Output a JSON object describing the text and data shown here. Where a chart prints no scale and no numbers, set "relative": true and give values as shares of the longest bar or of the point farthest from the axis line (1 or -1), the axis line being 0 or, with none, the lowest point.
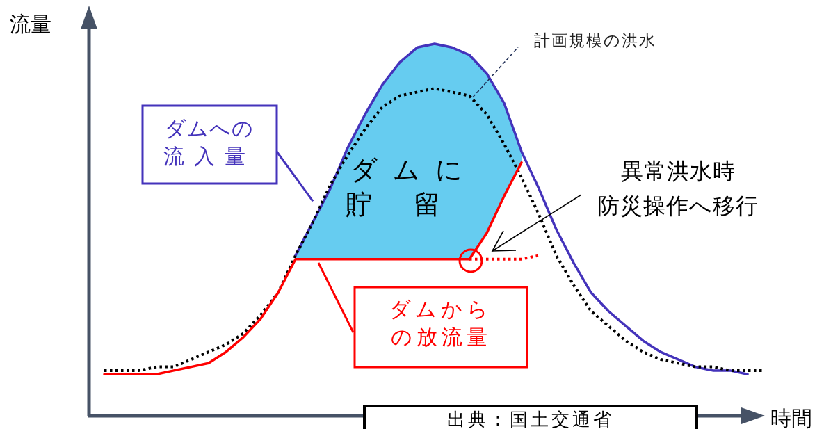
{
  "chart_data": {
    "type": "line",
    "relative": true,
    "xlabel": "時間",
    "ylabel": "流量",
    "categories": [
      null,
      null,
      null,
      null,
      null,
      null,
      null,
      null,
      null,
      null,
      null,
      null,
      null,
      null,
      null,
      null,
      null,
      null,
      null,
      null,
      null,
      null,
      null,
      null,
      null,
      null,
      null,
      null,
      null,
      null,
      null,
      null,
      null,
      null,
      null,
      null,
      null,
      null,
      null
    ],
    "series": [
      {
        "type": "area",
        "color": "#66ccf0",
        "values": [
          null,
          null,
          null,
          null,
          null,
          null,
          null,
          null,
          null,
          null,
          null,
          0.43,
          0.52,
          0.61,
          0.72,
          0.81,
          0.89,
          0.95,
          0.99,
          1,
          0.99,
          0.97,
          0.92,
          0.84,
          0.71,
          null,
          null,
          null,
          null,
          null,
          null,
          null,
          null,
          null,
          null,
          null,
          null,
          null,
          null
        ]
      },
      {
        "name": "ダムへの流入量",
        "color": "#4433bb",
        "values": [
          null,
          null,
          null,
          null,
          null,
          null,
          null,
          null,
          null,
          null,
          null,
          0.43,
          0.52,
          0.61,
          0.72,
          0.81,
          0.89,
          0.95,
          0.99,
          1,
          0.99,
          0.97,
          0.92,
          0.84,
          0.71,
          0.61,
          0.5,
          0.41,
          0.33,
          0.28,
          0.24,
          0.2,
          0.17,
          0.15,
          0.13,
          0.12,
          0.12,
          0.11,
          null
        ]
      },
      {
        "name": "計画規模の洪水",
        "color": "#000000",
        "line_style": "dotted",
        "values": [
          0.12,
          0.12,
          0.12,
          0.13,
          0.13,
          0.15,
          0.17,
          0.19,
          0.22,
          0.27,
          0.33,
          0.43,
          0.52,
          0.62,
          0.7,
          0.77,
          0.83,
          0.86,
          0.87,
          0.88,
          0.87,
          0.86,
          0.81,
          0.73,
          0.64,
          0.54,
          0.43,
          0.35,
          0.28,
          0.24,
          0.2,
          0.17,
          0.15,
          0.14,
          0.13,
          0.13,
          0.12,
          0.12,
          0.12
        ]
      },
      {
        "name": "ダムからの放流量",
        "color": "#ff0000",
        "values": [
          0.11,
          0.11,
          0.11,
          0.11,
          0.12,
          0.13,
          0.14,
          0.17,
          0.21,
          0.26,
          0.33,
          0.42,
          0.42,
          0.42,
          0.42,
          0.42,
          0.42,
          0.42,
          0.42,
          0.42,
          0.42,
          0.42,
          0.49,
          0.59,
          0.68,
          null,
          null,
          null,
          null,
          null,
          null,
          null,
          null,
          null,
          null,
          null,
          null,
          null,
          null
        ]
      },
      {
        "color": "#ff0000",
        "line_style": "dotted",
        "values": [
          null,
          null,
          null,
          null,
          null,
          null,
          null,
          null,
          null,
          null,
          null,
          null,
          null,
          null,
          null,
          null,
          null,
          null,
          null,
          null,
          null,
          0.42,
          0.42,
          0.42,
          0.42,
          0.43,
          null,
          null,
          null,
          null,
          null,
          null,
          null,
          null,
          null,
          null,
          null,
          null,
          null
        ]
      }
    ],
    "annotations": [
      "ダムに",
      "貯留",
      "異常洪水時",
      "防災操作へ移行",
      "出典：国土交通省"
    ]
  }
}
